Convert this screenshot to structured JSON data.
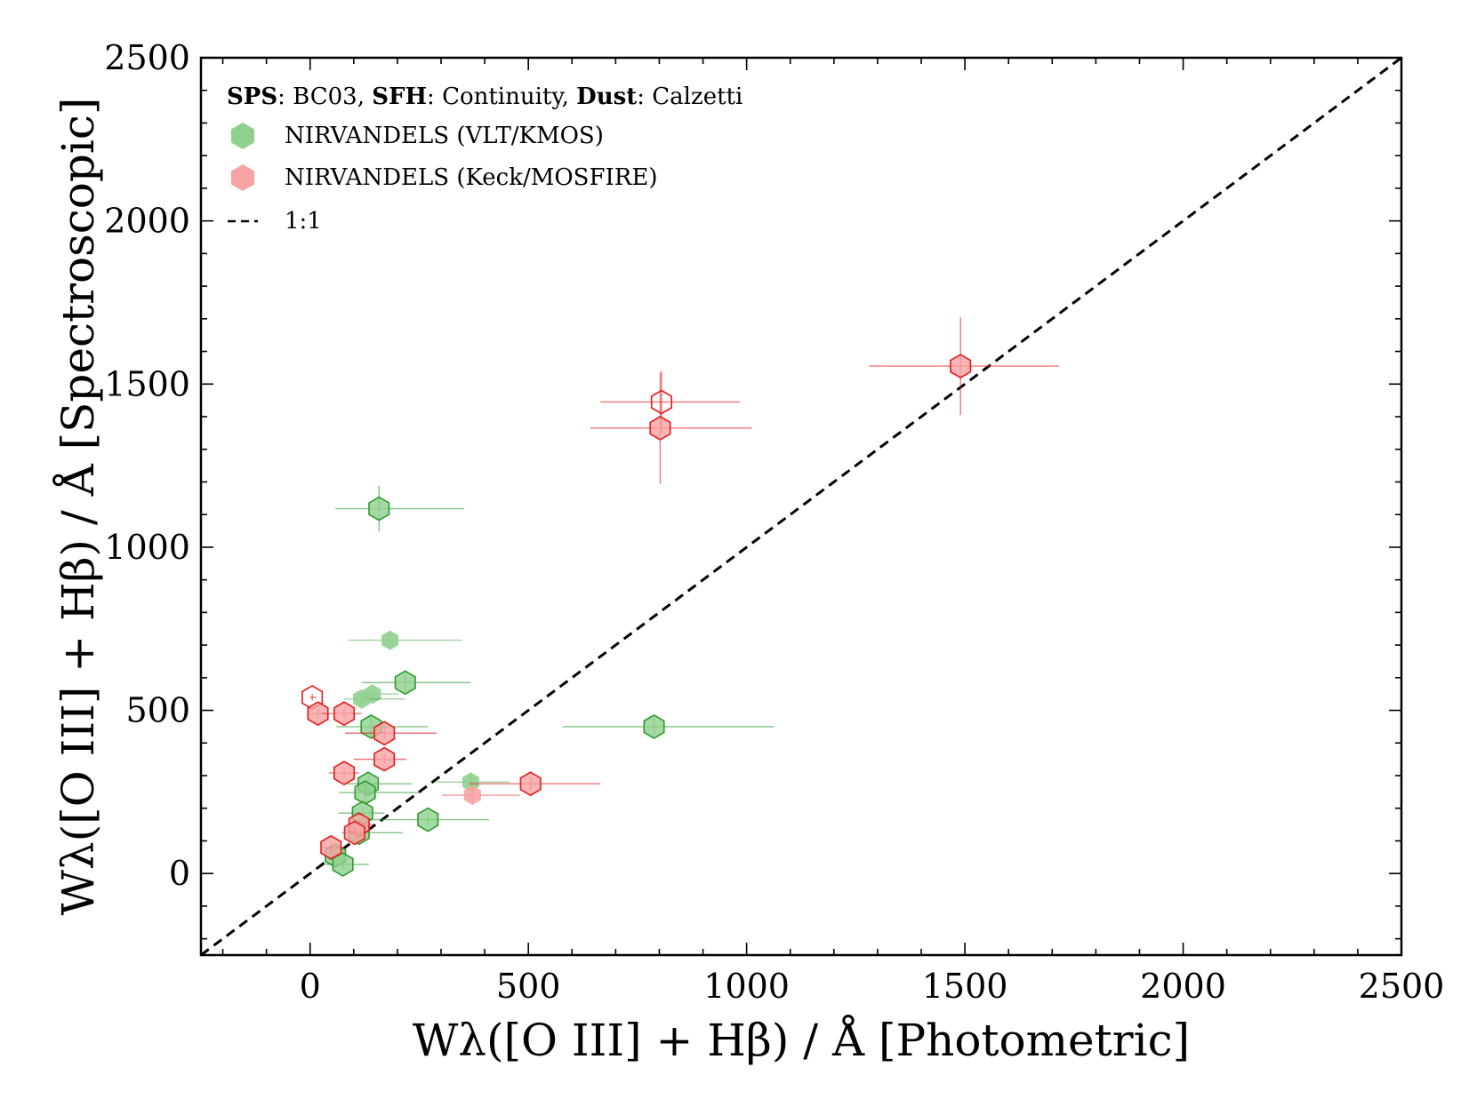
{
  "chart_data": {
    "type": "scatter",
    "title": "",
    "xlabel": "Wλ([O III] + Hβ) / Å  [Photometric]",
    "ylabel": "Wλ([O III] + Hβ) / Å  [Spectroscopic]",
    "xlim": [
      -250,
      2500
    ],
    "ylim": [
      -250,
      2500
    ],
    "xticks": [
      "0",
      "500",
      "1000",
      "1500",
      "2000",
      "2500"
    ],
    "yticks": [
      "0",
      "500",
      "1000",
      "1500",
      "2000",
      "2500"
    ],
    "legend_position": "top-left",
    "legend_header": {
      "sps_label": "SPS",
      "sps_value": ": BC03, ",
      "sfh_label": "SFH",
      "sfh_value": ": Continuity, ",
      "dust_label": "Dust",
      "dust_value": ": Calzetti"
    },
    "reference_line": {
      "label": "1:1",
      "style": "dashed",
      "color": "#000000"
    },
    "series": [
      {
        "name": "NIRVANDELS (VLT/KMOS)",
        "color": "#2e9a2e",
        "fill": "#8fd08f",
        "points": [
          {
            "x": 158,
            "y": 1118,
            "xerr": [
              100,
              195
            ],
            "yerr": [
              70,
              70
            ],
            "style": "filled"
          },
          {
            "x": 183,
            "y": 715,
            "xerr": [
              95,
              165
            ],
            "yerr": [
              25,
              25
            ],
            "style": "filled-faint"
          },
          {
            "x": 218,
            "y": 585,
            "xerr": [
              100,
              150
            ],
            "yerr": [
              25,
              25
            ],
            "style": "filled"
          },
          {
            "x": 143,
            "y": 550,
            "xerr": [
              40,
              60
            ],
            "yerr": [
              20,
              20
            ],
            "style": "filled-faint"
          },
          {
            "x": 118,
            "y": 535,
            "xerr": [
              40,
              100
            ],
            "yerr": [
              20,
              20
            ],
            "style": "filled-faint"
          },
          {
            "x": 140,
            "y": 450,
            "xerr": [
              80,
              130
            ],
            "yerr": [
              30,
              30
            ],
            "style": "filled"
          },
          {
            "x": 788,
            "y": 450,
            "xerr": [
              210,
              275
            ],
            "yerr": [
              25,
              25
            ],
            "style": "filled"
          },
          {
            "x": 368,
            "y": 280,
            "xerr": [
              80,
              90
            ],
            "yerr": [
              20,
              20
            ],
            "style": "filled-faint"
          },
          {
            "x": 133,
            "y": 275,
            "xerr": [
              50,
              100
            ],
            "yerr": [
              25,
              25
            ],
            "style": "filled"
          },
          {
            "x": 126,
            "y": 248,
            "xerr": [
              60,
              130
            ],
            "yerr": [
              25,
              25
            ],
            "style": "filled"
          },
          {
            "x": 120,
            "y": 185,
            "xerr": [
              55,
              50
            ],
            "yerr": [
              20,
              20
            ],
            "style": "filled"
          },
          {
            "x": 270,
            "y": 165,
            "xerr": [
              140,
              140
            ],
            "yerr": [
              20,
              20
            ],
            "style": "filled"
          },
          {
            "x": 112,
            "y": 125,
            "xerr": [
              40,
              100
            ],
            "yerr": [
              20,
              20
            ],
            "style": "filled"
          },
          {
            "x": 58,
            "y": 55,
            "xerr": [
              25,
              25
            ],
            "yerr": [
              20,
              20
            ],
            "style": "filled"
          },
          {
            "x": 75,
            "y": 28,
            "xerr": [
              40,
              60
            ],
            "yerr": [
              15,
              15
            ],
            "style": "filled"
          }
        ]
      },
      {
        "name": "NIRVANDELS (Keck/MOSFIRE)",
        "color": "#e41a1c",
        "fill": "#f7a3a3",
        "points": [
          {
            "x": 1490,
            "y": 1555,
            "xerr": [
              210,
              225
            ],
            "yerr": [
              150,
              150
            ],
            "style": "filled"
          },
          {
            "x": 805,
            "y": 1445,
            "xerr": [
              140,
              180
            ],
            "yerr": [
              95,
              95
            ],
            "style": "open"
          },
          {
            "x": 802,
            "y": 1365,
            "xerr": [
              160,
              210
            ],
            "yerr": [
              170,
              170
            ],
            "style": "filled"
          },
          {
            "x": 5,
            "y": 540,
            "xerr": [
              5,
              10
            ],
            "yerr": [
              10,
              10
            ],
            "style": "open"
          },
          {
            "x": 18,
            "y": 490,
            "xerr": [
              15,
              15
            ],
            "yerr": [
              15,
              15
            ],
            "style": "filled"
          },
          {
            "x": 78,
            "y": 490,
            "xerr": [
              50,
              40
            ],
            "yerr": [
              15,
              15
            ],
            "style": "filled"
          },
          {
            "x": 170,
            "y": 430,
            "xerr": [
              90,
              120
            ],
            "yerr": [
              20,
              20
            ],
            "style": "filled"
          },
          {
            "x": 170,
            "y": 350,
            "xerr": [
              70,
              50
            ],
            "yerr": [
              15,
              15
            ],
            "style": "filled"
          },
          {
            "x": 78,
            "y": 308,
            "xerr": [
              35,
              35
            ],
            "yerr": [
              15,
              15
            ],
            "style": "filled"
          },
          {
            "x": 505,
            "y": 275,
            "xerr": [
              140,
              160
            ],
            "yerr": [
              20,
              20
            ],
            "style": "filled"
          },
          {
            "x": 372,
            "y": 240,
            "xerr": [
              70,
              110
            ],
            "yerr": [
              30,
              30
            ],
            "style": "filled-faint"
          },
          {
            "x": 112,
            "y": 150,
            "xerr": [
              25,
              35
            ],
            "yerr": [
              15,
              15
            ],
            "style": "filled"
          },
          {
            "x": 102,
            "y": 125,
            "xerr": [
              25,
              25
            ],
            "yerr": [
              15,
              15
            ],
            "style": "filled"
          },
          {
            "x": 48,
            "y": 80,
            "xerr": [
              20,
              20
            ],
            "yerr": [
              15,
              15
            ],
            "style": "filled"
          }
        ]
      }
    ]
  }
}
